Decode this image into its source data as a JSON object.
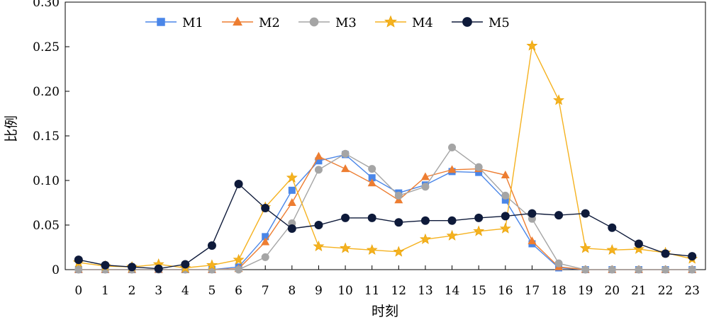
{
  "chart_data": {
    "type": "line",
    "xlabel": "时刻",
    "ylabel": "比例",
    "x": [
      0,
      1,
      2,
      3,
      4,
      5,
      6,
      7,
      8,
      9,
      10,
      11,
      12,
      13,
      14,
      15,
      16,
      17,
      18,
      19,
      20,
      21,
      22,
      23
    ],
    "xlim": [
      -0.5,
      23.5
    ],
    "ylim": [
      0,
      0.3
    ],
    "y_ticks": [
      0,
      0.05,
      0.1,
      0.15,
      0.2,
      0.25,
      0.3
    ],
    "y_tick_labels": [
      "0",
      "0.05",
      "0.10",
      "0.15",
      "0.20",
      "0.25",
      "0.30"
    ],
    "grid": false,
    "legend_position": "top",
    "series": [
      {
        "name": "M1",
        "color": "#4a86e8",
        "marker": "square",
        "values": [
          0,
          0,
          0,
          0,
          0,
          0,
          0.003,
          0.037,
          0.089,
          0.122,
          0.129,
          0.103,
          0.086,
          0.095,
          0.11,
          0.109,
          0.078,
          0.029,
          0.002,
          0,
          0,
          0,
          0,
          0
        ]
      },
      {
        "name": "M2",
        "color": "#ed7d31",
        "marker": "triangle",
        "values": [
          0,
          0,
          0,
          0,
          0,
          0,
          0.001,
          0.031,
          0.075,
          0.127,
          0.113,
          0.097,
          0.078,
          0.104,
          0.112,
          0.113,
          0.106,
          0.032,
          0.003,
          0,
          0,
          0,
          0,
          0
        ]
      },
      {
        "name": "M3",
        "color": "#a5a5a5",
        "marker": "circle",
        "values": [
          0,
          0,
          0,
          0,
          0,
          0,
          0,
          0.014,
          0.052,
          0.112,
          0.13,
          0.113,
          0.083,
          0.093,
          0.137,
          0.115,
          0.083,
          0.057,
          0.007,
          0,
          0,
          0,
          0,
          0
        ]
      },
      {
        "name": "M4",
        "color": "#f5b220",
        "marker": "star",
        "values": [
          0.008,
          0.004,
          0.003,
          0.006,
          0.002,
          0.005,
          0.011,
          0.07,
          0.103,
          0.026,
          0.024,
          0.022,
          0.02,
          0.034,
          0.038,
          0.043,
          0.046,
          0.251,
          0.19,
          0.024,
          0.022,
          0.023,
          0.019,
          0.012
        ]
      },
      {
        "name": "M5",
        "color": "#0e1a3a",
        "marker": "circle",
        "values": [
          0.011,
          0.005,
          0.003,
          0.001,
          0.006,
          0.027,
          0.096,
          0.069,
          0.046,
          0.05,
          0.058,
          0.058,
          0.053,
          0.055,
          0.055,
          0.058,
          0.06,
          0.063,
          0.061,
          0.063,
          0.047,
          0.029,
          0.018,
          0.015
        ]
      }
    ]
  }
}
